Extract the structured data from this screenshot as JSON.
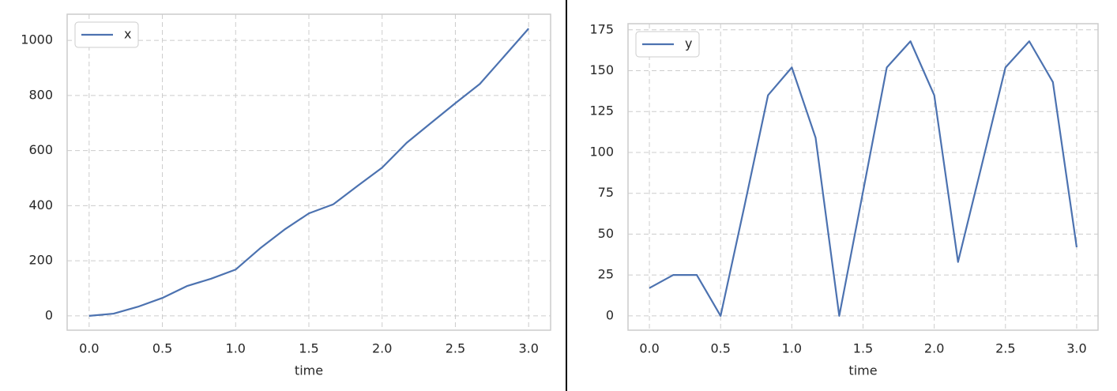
{
  "chart_data": [
    {
      "type": "line",
      "xlabel": "time",
      "x": [
        0,
        0.167,
        0.333,
        0.5,
        0.667,
        0.833,
        1.0,
        1.167,
        1.333,
        1.5,
        1.667,
        1.833,
        2.0,
        2.167,
        2.333,
        2.5,
        2.667,
        2.833,
        3.0
      ],
      "series": [
        {
          "name": "x",
          "color": "#4c72b0",
          "values": [
            0,
            8,
            33,
            65,
            108,
            135,
            168,
            245,
            313,
            372,
            405,
            472,
            538,
            628,
            700,
            772,
            842,
            942,
            1043
          ]
        }
      ],
      "xlim": [
        -0.15,
        3.15
      ],
      "ylim": [
        -52,
        1095
      ],
      "xticks": [
        {
          "value": 0,
          "label": "0.0"
        },
        0.5,
        {
          "value": 1,
          "label": "1.0"
        },
        1.5,
        {
          "value": 2,
          "label": "2.0"
        },
        2.5,
        {
          "value": 3,
          "label": "3.0"
        }
      ],
      "yticks": [
        0,
        200,
        400,
        600,
        800,
        1000
      ],
      "grid": true,
      "legend": "upper left"
    },
    {
      "type": "line",
      "xlabel": "time",
      "x": [
        0,
        0.167,
        0.333,
        0.5,
        0.667,
        0.833,
        1.0,
        1.167,
        1.333,
        1.5,
        1.667,
        1.833,
        2.0,
        2.167,
        2.333,
        2.5,
        2.667,
        2.833,
        3.0
      ],
      "series": [
        {
          "name": "y",
          "color": "#4c72b0",
          "values": [
            17,
            25,
            25,
            0,
            67,
            135,
            152,
            109,
            0,
            76,
            152,
            168,
            135,
            33,
            92,
            152,
            168,
            143,
            42
          ]
        }
      ],
      "xlim": [
        -0.15,
        3.15
      ],
      "ylim": [
        -8.75,
        178.75
      ],
      "xticks": [
        {
          "value": 0,
          "label": "0.0"
        },
        0.5,
        {
          "value": 1,
          "label": "1.0"
        },
        1.5,
        {
          "value": 2,
          "label": "2.0"
        },
        2.5,
        {
          "value": 3,
          "label": "3.0"
        }
      ],
      "yticks": [
        0,
        25,
        50,
        75,
        100,
        125,
        150,
        175
      ],
      "grid": true,
      "legend": "upper left"
    }
  ]
}
